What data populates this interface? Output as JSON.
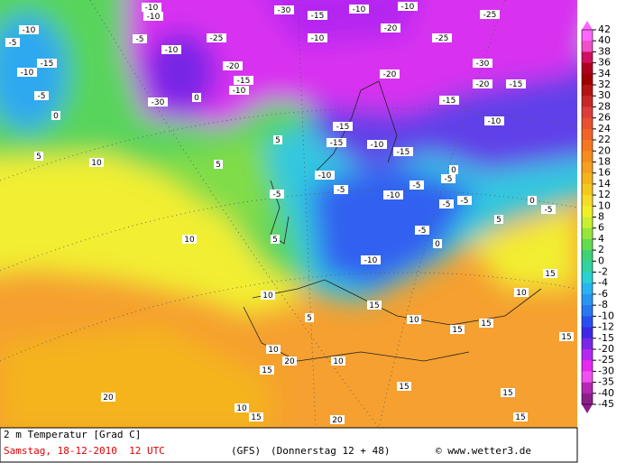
{
  "footer": {
    "title": "2 m Temperatur [Grad C]",
    "date": "Samstag, 18-12-2010  12 UTC",
    "model": "(GFS)",
    "run": "(Donnerstag 12 + 48)",
    "credit": "© www.wetter3.de"
  },
  "colorbar": {
    "levels": [
      42,
      40,
      38,
      36,
      34,
      32,
      30,
      28,
      26,
      24,
      22,
      20,
      18,
      16,
      14,
      12,
      10,
      8,
      6,
      4,
      2,
      0,
      -2,
      -4,
      -6,
      -8,
      -10,
      -12,
      -15,
      -20,
      -25,
      -30,
      -35,
      -40,
      -45
    ],
    "colors": [
      "#ff66ff",
      "#f050c8",
      "#d01060",
      "#b00020",
      "#a00000",
      "#b41414",
      "#c82828",
      "#dc3c3c",
      "#e85030",
      "#f06428",
      "#f57820",
      "#f58c1e",
      "#f5a01e",
      "#f5b41e",
      "#f5c81e",
      "#f5dc28",
      "#f0f028",
      "#c8f030",
      "#96e63c",
      "#64dc50",
      "#3cd278",
      "#32d2a0",
      "#28d2d2",
      "#28b4f0",
      "#2896f0",
      "#2878f0",
      "#2850f0",
      "#3c28e6",
      "#7828e6",
      "#b428f0",
      "#e628f0",
      "#f050f0",
      "#b428b4",
      "#8c1e8c"
    ]
  },
  "map": {
    "labels": [
      -10,
      -5,
      -15,
      -10,
      -5,
      0,
      -10,
      -10,
      -5,
      -10,
      -25,
      -20,
      -15,
      -10,
      -30,
      0,
      -30,
      -15,
      -10,
      -10,
      -20,
      -10,
      -25,
      -25,
      -30,
      -20,
      -15,
      -15,
      -10,
      -20,
      -15,
      -15,
      -10,
      -15,
      5,
      10,
      5,
      5,
      -10,
      -5,
      -10,
      -5,
      -5,
      0,
      -5,
      -5,
      0,
      -5,
      5,
      10,
      5,
      -5,
      -10,
      -5,
      0,
      10,
      5,
      10,
      15,
      15,
      10,
      15,
      10,
      20,
      15,
      10,
      15,
      20,
      10,
      15,
      20,
      15,
      15,
      15,
      15
    ]
  }
}
